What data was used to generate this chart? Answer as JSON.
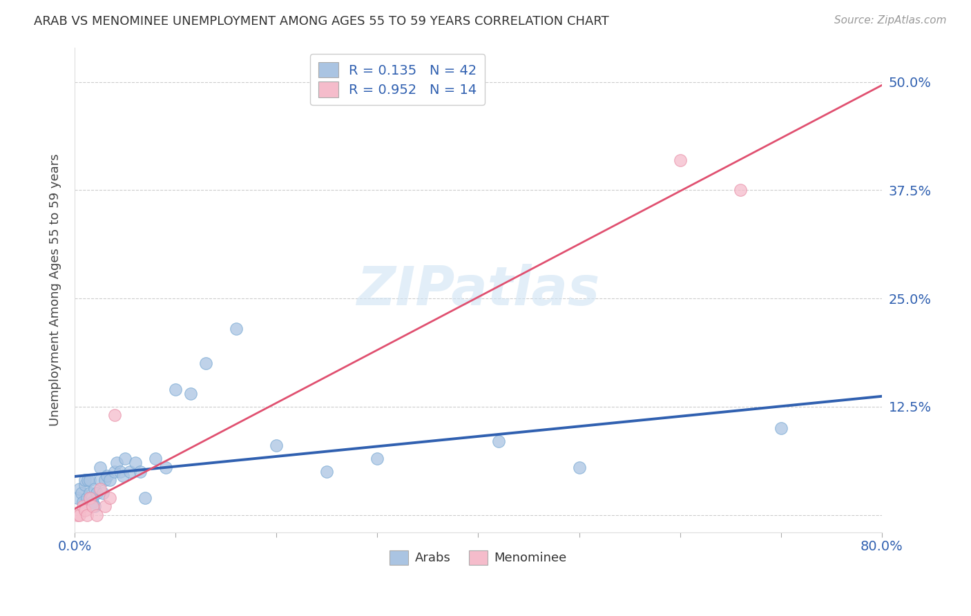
{
  "title": "ARAB VS MENOMINEE UNEMPLOYMENT AMONG AGES 55 TO 59 YEARS CORRELATION CHART",
  "source": "Source: ZipAtlas.com",
  "ylabel": "Unemployment Among Ages 55 to 59 years",
  "xlim": [
    0.0,
    0.8
  ],
  "ylim": [
    -0.02,
    0.54
  ],
  "xticks": [
    0.0,
    0.1,
    0.2,
    0.3,
    0.4,
    0.5,
    0.6,
    0.7,
    0.8
  ],
  "xticklabels": [
    "0.0%",
    "",
    "",
    "",
    "",
    "",
    "",
    "",
    "80.0%"
  ],
  "ytick_positions": [
    0.0,
    0.125,
    0.25,
    0.375,
    0.5
  ],
  "yticklabels": [
    "",
    "12.5%",
    "25.0%",
    "37.5%",
    "50.0%"
  ],
  "arab_R": "0.135",
  "arab_N": "42",
  "menominee_R": "0.952",
  "menominee_N": "14",
  "arab_color": "#aac4e2",
  "arab_edge_color": "#7aaad4",
  "arab_line_color": "#3060b0",
  "menominee_color": "#f5bccb",
  "menominee_edge_color": "#e890a8",
  "menominee_line_color": "#e05070",
  "watermark": "ZIPatlas",
  "legend_label_arab": "Arabs",
  "legend_label_menominee": "Menominee",
  "arab_x": [
    0.003,
    0.005,
    0.007,
    0.008,
    0.01,
    0.01,
    0.012,
    0.013,
    0.015,
    0.015,
    0.017,
    0.018,
    0.02,
    0.02,
    0.022,
    0.025,
    0.025,
    0.028,
    0.03,
    0.032,
    0.035,
    0.04,
    0.042,
    0.045,
    0.048,
    0.05,
    0.055,
    0.06,
    0.065,
    0.07,
    0.08,
    0.09,
    0.1,
    0.115,
    0.13,
    0.16,
    0.2,
    0.25,
    0.3,
    0.42,
    0.5,
    0.7
  ],
  "arab_y": [
    0.02,
    0.03,
    0.025,
    0.015,
    0.035,
    0.04,
    0.02,
    0.04,
    0.025,
    0.04,
    0.02,
    0.015,
    0.03,
    0.01,
    0.025,
    0.04,
    0.055,
    0.025,
    0.04,
    0.045,
    0.04,
    0.05,
    0.06,
    0.05,
    0.045,
    0.065,
    0.05,
    0.06,
    0.05,
    0.02,
    0.065,
    0.055,
    0.145,
    0.14,
    0.175,
    0.215,
    0.08,
    0.05,
    0.065,
    0.085,
    0.055,
    0.1
  ],
  "menominee_x": [
    0.003,
    0.005,
    0.008,
    0.01,
    0.012,
    0.015,
    0.018,
    0.022,
    0.025,
    0.03,
    0.035,
    0.04,
    0.6,
    0.66
  ],
  "menominee_y": [
    0.0,
    0.0,
    0.01,
    0.005,
    0.0,
    0.02,
    0.01,
    0.0,
    0.03,
    0.01,
    0.02,
    0.115,
    0.41,
    0.375
  ],
  "arab_trendline": [
    0.0,
    0.8,
    0.025,
    0.095
  ],
  "menominee_trendline": [
    0.0,
    0.8,
    -0.03,
    0.53
  ]
}
